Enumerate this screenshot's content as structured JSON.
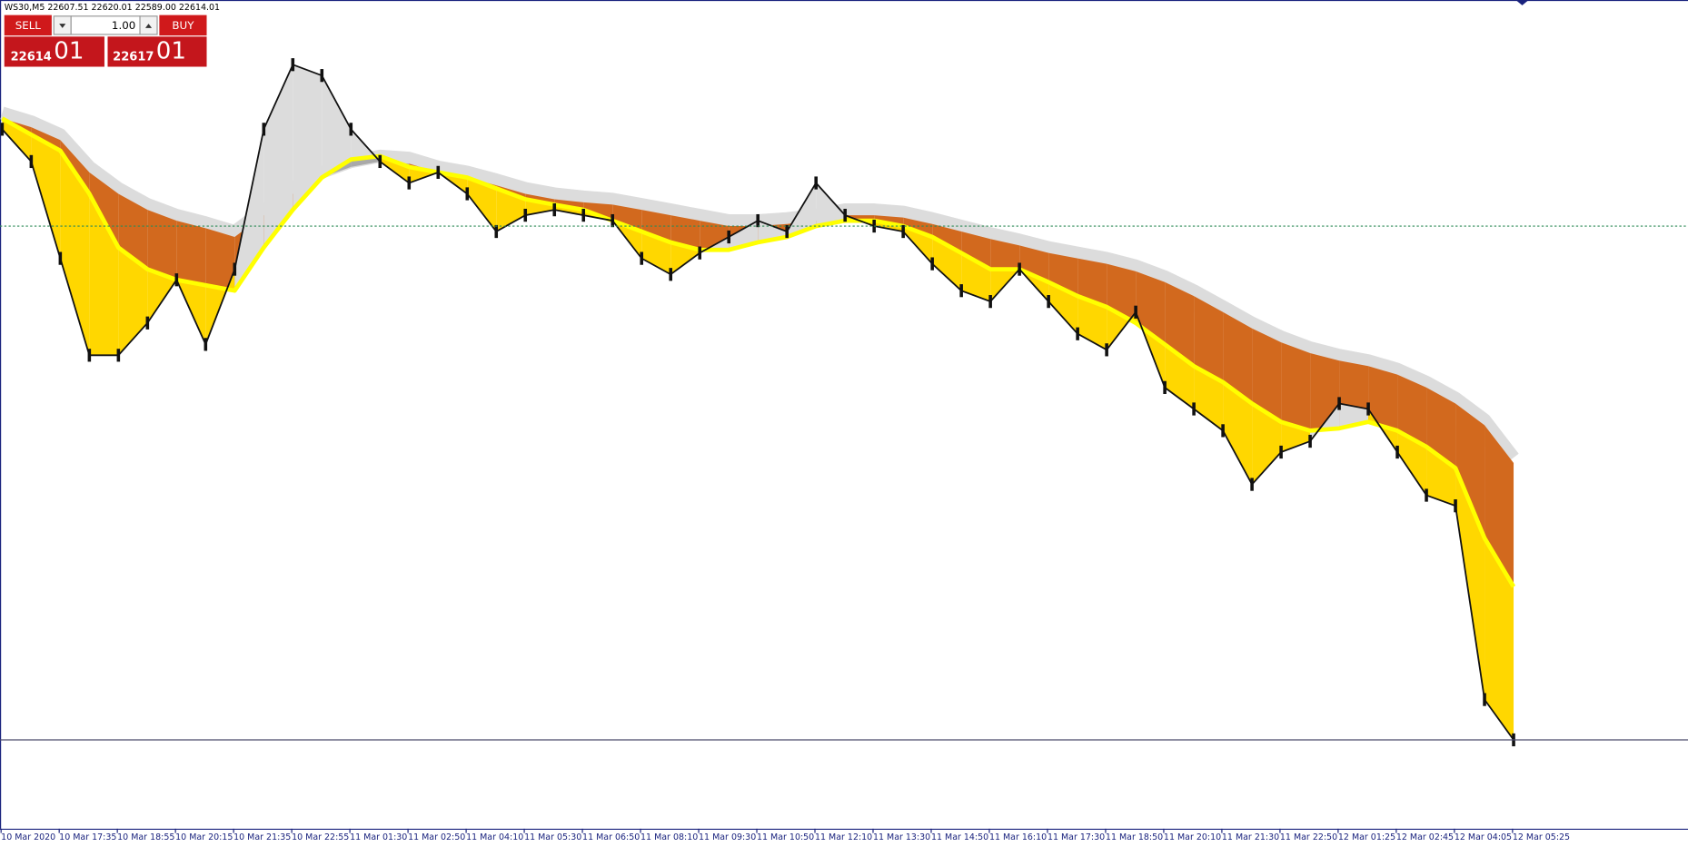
{
  "window": {
    "header": "WS30,M5  22607.51 22620.01 22589.00 22614.01"
  },
  "trade_panel": {
    "sell": "SELL",
    "buy": "BUY",
    "lot": "1.00",
    "sell_price": "22614",
    "sell_price_digits": "01",
    "buy_price": "22617",
    "buy_price_digits": "01"
  },
  "chart_data": {
    "type": "line",
    "categories": [
      "10 Mar 2020",
      null,
      "10 Mar 17:35",
      null,
      "10 Mar 18:55",
      null,
      "10 Mar 20:15",
      null,
      "10 Mar 21:35",
      null,
      "10 Mar 22:55",
      null,
      "11 Mar 01:30",
      null,
      "11 Mar 02:50",
      null,
      "11 Mar 04:10",
      null,
      "11 Mar 05:30",
      null,
      "11 Mar 06:50",
      null,
      "11 Mar 08:10",
      null,
      "11 Mar 09:30",
      null,
      "11 Mar 10:50",
      null,
      "11 Mar 12:10",
      null,
      "11 Mar 13:30",
      null,
      "11 Mar 14:50",
      null,
      "11 Mar 16:10",
      null,
      "11 Mar 17:30",
      null,
      "11 Mar 18:50",
      null,
      "11 Mar 20:10",
      null,
      "11 Mar 21:30",
      null,
      "11 Mar 22:50",
      null,
      "12 Mar 01:25",
      null,
      "12 Mar 02:45",
      null,
      "12 Mar 04:05",
      null,
      "12 Mar 05:25"
    ],
    "series": [
      {
        "color": "#111111",
        "values": [
          24978,
          24853,
          24478,
          24103,
          24103,
          24228,
          24395,
          24145,
          24436,
          24978,
          25228,
          25186,
          24978,
          24853,
          24770,
          24811,
          24728,
          24582,
          24645,
          24666,
          24645,
          24624,
          24478,
          24416,
          24499,
          24561,
          24624,
          24582,
          24770,
          24645,
          24603,
          24582,
          24457,
          24353,
          24311,
          24436,
          24311,
          24186,
          24124,
          24270,
          23978,
          23895,
          23811,
          23603,
          23728,
          23770,
          23916,
          23895,
          23728,
          23561,
          23520,
          22770,
          22614
        ]
      },
      {
        "color": "#ffff00",
        "values": [
          25020,
          24957,
          24895,
          24728,
          24520,
          24436,
          24395,
          24374,
          24353,
          24520,
          24666,
          24791,
          24861,
          24874,
          24832,
          24811,
          24791,
          24749,
          24707,
          24686,
          24666,
          24624,
          24582,
          24540,
          24511,
          24511,
          24540,
          24561,
          24603,
          24624,
          24624,
          24603,
          24561,
          24499,
          24436,
          24436,
          24386,
          24332,
          24290,
          24228,
          24145,
          24061,
          23999,
          23916,
          23845,
          23811,
          23820,
          23845,
          23811,
          23749,
          23666,
          23395,
          23207
        ]
      },
      {
        "color": "#d2691e",
        "values": [
          25020,
          24986,
          24936,
          24811,
          24728,
          24666,
          24624,
          24595,
          24561,
          24645,
          24728,
          24791,
          24832,
          24853,
          24845,
          24811,
          24791,
          24761,
          24728,
          24707,
          24695,
          24686,
          24666,
          24645,
          24624,
          24603,
          24603,
          24611,
          24624,
          24645,
          24645,
          24636,
          24611,
          24582,
          24553,
          24528,
          24499,
          24478,
          24457,
          24428,
          24386,
          24332,
          24270,
          24207,
          24153,
          24111,
          24082,
          24061,
          24028,
          23978,
          23916,
          23832,
          23686
        ]
      }
    ],
    "below_fill": "#ffd700",
    "above_fill": "#dcdcdc",
    "band_fill_down": "#d2691e",
    "band_fill_up": "#a9a9a9",
    "level": 24603,
    "level_color": "#2e8b57",
    "ylim": [
      22270,
      25470
    ]
  }
}
